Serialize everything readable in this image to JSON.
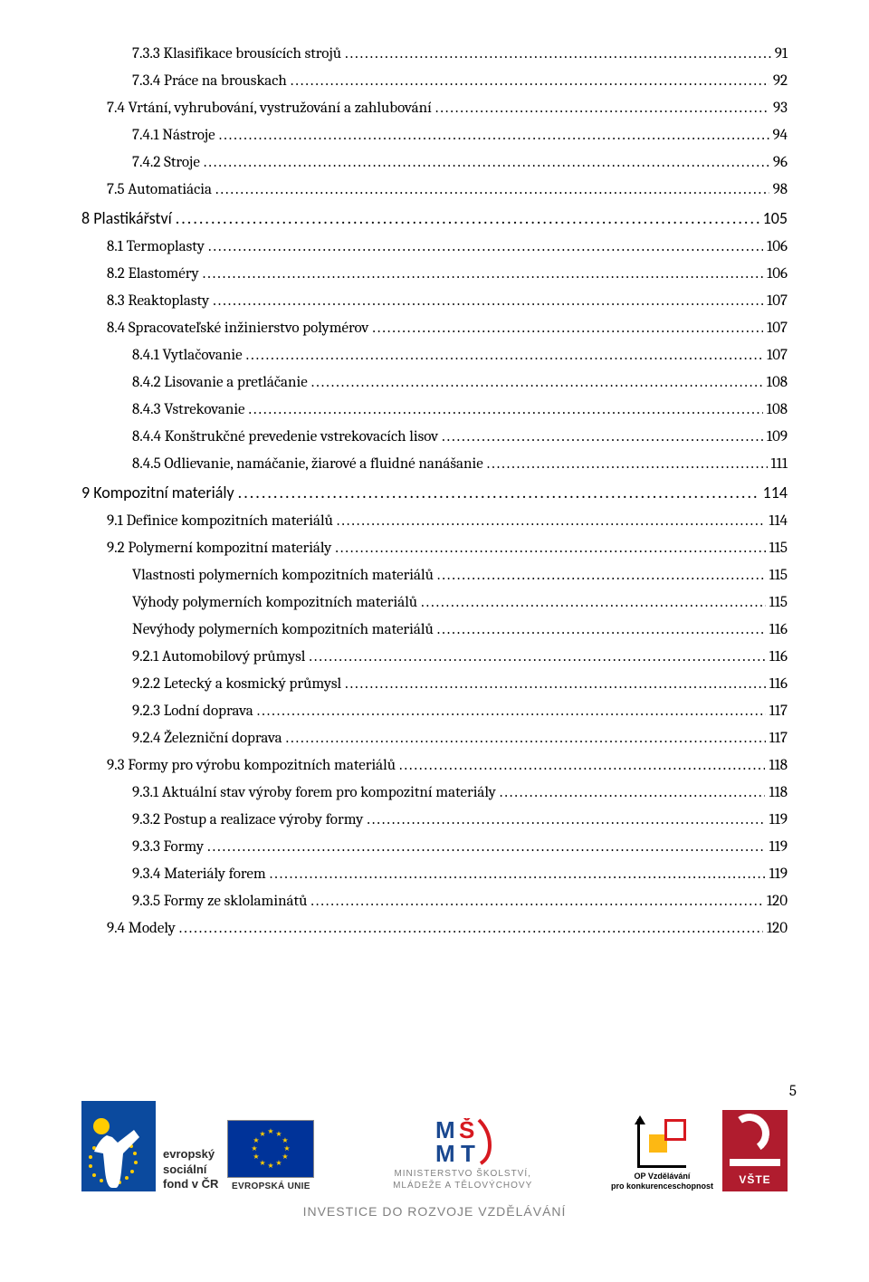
{
  "page_number": "5",
  "footer": {
    "caption": "INVESTICE DO ROZVOJE VZDĚLÁVÁNÍ",
    "esf": {
      "line1": "evropský",
      "line2": "sociální",
      "line3": "fond v ČR"
    },
    "eu_label": "EVROPSKÁ UNIE",
    "msmt": {
      "line1": "MINISTERSTVO ŠKOLSTVÍ,",
      "line2": "MLÁDEŽE A TĚLOVÝCHOVY"
    },
    "opvk": {
      "line1": "OP Vzdělávání",
      "line2": "pro konkurenceschopnost"
    },
    "vste_label": "VŠTE"
  },
  "colors": {
    "text": "#000000",
    "grey": "#808080",
    "esf_blue": "#0b4a9e",
    "eu_blue": "#003399",
    "eu_gold": "#ffcc00",
    "vste_red": "#b01c2e",
    "opvk_red": "#d71920",
    "opvk_yellow": "#fdb813"
  },
  "typography": {
    "toc_fontsize_pt": 13,
    "chapter_fontsize_pt": 14,
    "caption_fontsize_pt": 11
  },
  "toc": [
    {
      "level": 2,
      "label": "7.3.3 Klasifikace brousících strojů",
      "page": "91"
    },
    {
      "level": 2,
      "label": "7.3.4 Práce na brouskach",
      "page": "92"
    },
    {
      "level": 1,
      "label": "7.4 Vrtání, vyhrubování, vystružování a zahlubování",
      "page": "93"
    },
    {
      "level": 2,
      "label": "7.4.1 Nástroje",
      "page": "94"
    },
    {
      "level": 2,
      "label": "7.4.2 Stroje",
      "page": "96"
    },
    {
      "level": 1,
      "label": "7.5 Automatiácia",
      "page": "98"
    },
    {
      "level": 0,
      "label": "8 Plastikářství",
      "page": "105",
      "chapter": true
    },
    {
      "level": 1,
      "label": "8.1 Termoplasty",
      "page": "106"
    },
    {
      "level": 1,
      "label": "8.2 Elastoméry",
      "page": "106"
    },
    {
      "level": 1,
      "label": "8.3 Reaktoplasty",
      "page": "107"
    },
    {
      "level": 1,
      "label": "8.4  Spracovateľské inžinierstvo polymérov",
      "page": "107"
    },
    {
      "level": 2,
      "label": "8.4.1 Vytlačovanie",
      "page": "107"
    },
    {
      "level": 2,
      "label": "8.4.2 Lisovanie a pretláčanie",
      "page": "108"
    },
    {
      "level": 2,
      "label": "8.4.3 Vstrekovanie",
      "page": "108"
    },
    {
      "level": 2,
      "label": "8.4.4 Konštrukčné prevedenie vstrekovacích lisov",
      "page": "109"
    },
    {
      "level": 2,
      "label": "8.4.5 Odlievanie, namáčanie, žiarové a fluidné nanášanie",
      "page": "111"
    },
    {
      "level": 0,
      "label": "9 Kompozitní materiály",
      "page": "114",
      "chapter": true
    },
    {
      "level": 1,
      "label": "9.1 Definice kompozitních materiálů",
      "page": "114"
    },
    {
      "level": 1,
      "label": "9.2 Polymerní kompozitní materiály",
      "page": "115"
    },
    {
      "level": 2,
      "label": "Vlastnosti polymerních kompozitních materiálů",
      "page": "115"
    },
    {
      "level": 2,
      "label": "Výhody polymerních kompozitních materiálů",
      "page": "115"
    },
    {
      "level": 2,
      "label": "Nevýhody polymerních kompozitních materiálů",
      "page": "116"
    },
    {
      "level": 2,
      "label": "9.2.1 Automobilový průmysl",
      "page": "116"
    },
    {
      "level": 2,
      "label": "9.2.2 Letecký a kosmický průmysl",
      "page": "116"
    },
    {
      "level": 2,
      "label": "9.2.3 Lodní doprava",
      "page": "117"
    },
    {
      "level": 2,
      "label": "9.2.4 Železniční doprava",
      "page": "117"
    },
    {
      "level": 1,
      "label": "9.3      Formy pro výrobu kompozitních materiálů",
      "page": "118"
    },
    {
      "level": 2,
      "label": "9.3.1 Aktuální stav výroby forem pro kompozitní materiály",
      "page": "118"
    },
    {
      "level": 2,
      "label": "9.3.2 Postup a realizace výroby formy",
      "page": "119"
    },
    {
      "level": 2,
      "label": "9.3.3 Formy",
      "page": "119"
    },
    {
      "level": 2,
      "label": "9.3.4        Materiály forem",
      "page": "119"
    },
    {
      "level": 2,
      "label": "9.3.5 Formy ze sklolaminátů",
      "page": "120"
    },
    {
      "level": 1,
      "label": "9.4 Modely",
      "page": "120"
    }
  ]
}
